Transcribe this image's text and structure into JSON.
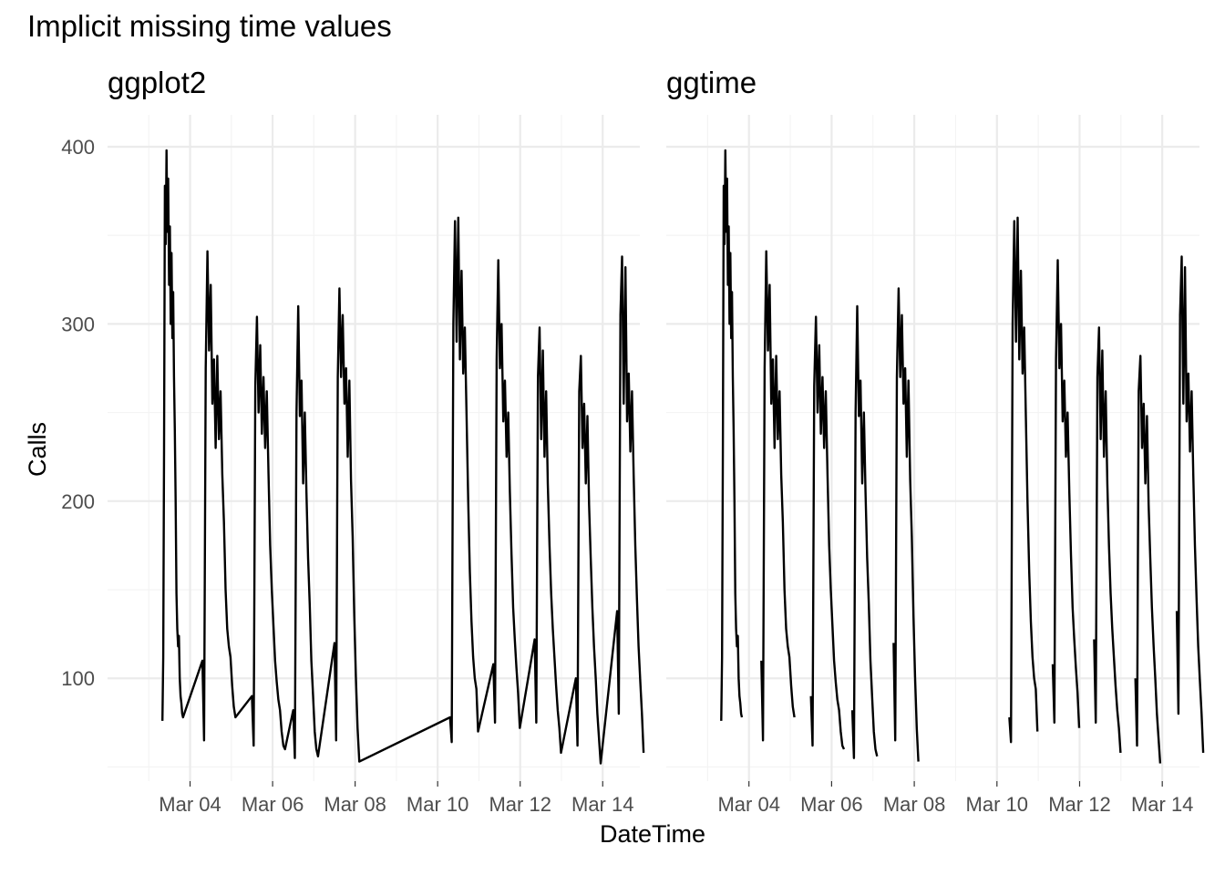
{
  "chart_data": {
    "type": "line",
    "title": "Implicit missing time values",
    "xlabel": "DateTime",
    "ylabel": "Calls",
    "x_tick_labels": [
      "Mar 04",
      "Mar 06",
      "Mar 08",
      "Mar 10",
      "Mar 12",
      "Mar 14"
    ],
    "x_tick_days": [
      4,
      6,
      8,
      10,
      12,
      14
    ],
    "y_ticks": [
      100,
      200,
      300,
      400
    ],
    "xlim_days": [
      2.0,
      14.9
    ],
    "ylim": [
      42,
      418
    ],
    "grid": true,
    "legend": "none",
    "line_color": "#000000",
    "panels": [
      {
        "title": "ggplot2",
        "connect_gaps": true
      },
      {
        "title": "ggtime",
        "connect_gaps": false
      }
    ],
    "series_x_unit": "day of March",
    "segments": [
      {
        "x": [
          3.33,
          3.35,
          3.37,
          3.39,
          3.41,
          3.43,
          3.45,
          3.47,
          3.49,
          3.51,
          3.53,
          3.55,
          3.57,
          3.59,
          3.61,
          3.63,
          3.65,
          3.67,
          3.69,
          3.71,
          3.73,
          3.75,
          3.77,
          3.79,
          3.81,
          3.83
        ],
        "y": [
          76,
          112,
          230,
          378,
          345,
          398,
          352,
          382,
          322,
          355,
          300,
          340,
          292,
          318,
          270,
          240,
          200,
          148,
          128,
          118,
          124,
          100,
          90,
          86,
          80,
          78
        ]
      },
      {
        "x": [
          4.3,
          4.34,
          4.38,
          4.42,
          4.46,
          4.5,
          4.54,
          4.58,
          4.62,
          4.66,
          4.7,
          4.74,
          4.78,
          4.82,
          4.86,
          4.9,
          4.94,
          4.98,
          5.02,
          5.06,
          5.1
        ],
        "y": [
          110,
          65,
          275,
          341,
          285,
          322,
          255,
          280,
          230,
          282,
          235,
          262,
          215,
          188,
          150,
          128,
          118,
          112,
          96,
          84,
          78
        ]
      },
      {
        "x": [
          5.5,
          5.54,
          5.58,
          5.62,
          5.66,
          5.7,
          5.74,
          5.78,
          5.82,
          5.86,
          5.9,
          5.94,
          5.98,
          6.02,
          6.06,
          6.1,
          6.14,
          6.18,
          6.22,
          6.26,
          6.3
        ],
        "y": [
          90,
          62,
          265,
          304,
          250,
          288,
          238,
          270,
          230,
          262,
          215,
          175,
          150,
          130,
          110,
          98,
          88,
          82,
          70,
          62,
          60
        ]
      },
      {
        "x": [
          6.5,
          6.54,
          6.58,
          6.62,
          6.66,
          6.7,
          6.74,
          6.78,
          6.82,
          6.86,
          6.9,
          6.94,
          6.98,
          7.02,
          7.06,
          7.1
        ],
        "y": [
          82,
          55,
          250,
          310,
          248,
          268,
          210,
          250,
          205,
          168,
          142,
          110,
          90,
          70,
          60,
          56
        ]
      },
      {
        "x": [
          7.5,
          7.54,
          7.58,
          7.62,
          7.66,
          7.7,
          7.74,
          7.78,
          7.82,
          7.86,
          7.9,
          7.94,
          7.98,
          8.02,
          8.06,
          8.1
        ],
        "y": [
          120,
          65,
          270,
          320,
          270,
          305,
          255,
          275,
          225,
          268,
          212,
          180,
          135,
          100,
          72,
          53
        ]
      },
      {
        "x": [
          10.3,
          10.34,
          10.38,
          10.42,
          10.46,
          10.5,
          10.54,
          10.58,
          10.62,
          10.66,
          10.7,
          10.74,
          10.78,
          10.82,
          10.86,
          10.9,
          10.94,
          10.98
        ],
        "y": [
          78,
          64,
          300,
          358,
          290,
          360,
          280,
          330,
          272,
          298,
          248,
          200,
          160,
          132,
          112,
          100,
          94,
          70
        ]
      },
      {
        "x": [
          11.35,
          11.39,
          11.43,
          11.47,
          11.51,
          11.55,
          11.59,
          11.63,
          11.67,
          11.71,
          11.75,
          11.79,
          11.83,
          11.87,
          11.91,
          11.95,
          11.99
        ],
        "y": [
          108,
          75,
          280,
          336,
          275,
          300,
          245,
          268,
          225,
          250,
          205,
          170,
          140,
          122,
          106,
          92,
          72
        ]
      },
      {
        "x": [
          12.35,
          12.39,
          12.43,
          12.47,
          12.51,
          12.55,
          12.59,
          12.63,
          12.67,
          12.71,
          12.75,
          12.79,
          12.83,
          12.87,
          12.91,
          12.95,
          12.99
        ],
        "y": [
          122,
          75,
          270,
          298,
          235,
          285,
          225,
          262,
          210,
          175,
          148,
          128,
          112,
          96,
          82,
          72,
          58
        ]
      },
      {
        "x": [
          13.35,
          13.39,
          13.43,
          13.47,
          13.51,
          13.55,
          13.59,
          13.63,
          13.67,
          13.71,
          13.75,
          13.79,
          13.83,
          13.87,
          13.91,
          13.95
        ],
        "y": [
          100,
          62,
          262,
          282,
          230,
          255,
          210,
          248,
          198,
          168,
          140,
          118,
          100,
          80,
          66,
          52
        ]
      },
      {
        "x": [
          14.35,
          14.39,
          14.43,
          14.47,
          14.51,
          14.55,
          14.59,
          14.63,
          14.67,
          14.71,
          14.75,
          14.79,
          14.83,
          14.87,
          14.91,
          14.95,
          14.99
        ],
        "y": [
          138,
          80,
          305,
          338,
          255,
          332,
          245,
          272,
          228,
          262,
          215,
          175,
          145,
          118,
          98,
          80,
          58
        ]
      }
    ]
  }
}
